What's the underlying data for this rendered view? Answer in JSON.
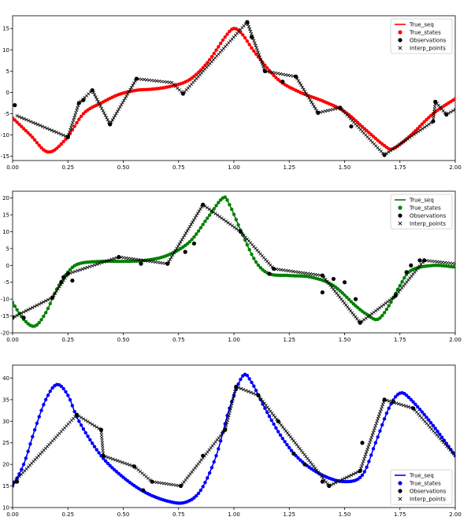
{
  "chart_data": [
    {
      "type": "line",
      "xlim": [
        0.0,
        2.0
      ],
      "ylim": [
        -16,
        18
      ],
      "xticks": [
        "0.00",
        "0.25",
        "0.50",
        "0.75",
        "1.00",
        "1.25",
        "1.50",
        "1.75",
        "2.00"
      ],
      "yticks": [
        "-15",
        "-10",
        "-5",
        "0",
        "5",
        "10",
        "15"
      ],
      "legend_position": "top-right",
      "color": "#ff0000",
      "legend": [
        "True_seq",
        "True_states",
        "Observations",
        "Interp_points"
      ],
      "true_seq": [
        [
          0.0,
          -6
        ],
        [
          0.08,
          -10
        ],
        [
          0.16,
          -14
        ],
        [
          0.24,
          -11
        ],
        [
          0.32,
          -5
        ],
        [
          0.4,
          -2.5
        ],
        [
          0.48,
          -0.5
        ],
        [
          0.56,
          0.5
        ],
        [
          0.64,
          0.8
        ],
        [
          0.72,
          1.5
        ],
        [
          0.8,
          3
        ],
        [
          0.88,
          7
        ],
        [
          0.96,
          13
        ],
        [
          1.0,
          15
        ],
        [
          1.04,
          13.5
        ],
        [
          1.1,
          9
        ],
        [
          1.2,
          3
        ],
        [
          1.3,
          0
        ],
        [
          1.4,
          -2
        ],
        [
          1.5,
          -4.5
        ],
        [
          1.6,
          -9
        ],
        [
          1.68,
          -12.5
        ],
        [
          1.72,
          -13.2
        ],
        [
          1.8,
          -10
        ],
        [
          1.9,
          -5
        ],
        [
          2.0,
          -1.5
        ]
      ],
      "observations": [
        [
          0.01,
          -3
        ],
        [
          0.25,
          -10.5
        ],
        [
          0.3,
          -2.5
        ],
        [
          0.32,
          -1.8
        ],
        [
          0.36,
          0.5
        ],
        [
          0.44,
          -7.5
        ],
        [
          0.56,
          3.2
        ],
        [
          0.77,
          -0.3
        ],
        [
          1.06,
          16.5
        ],
        [
          1.08,
          13
        ],
        [
          1.14,
          5
        ],
        [
          1.22,
          2.5
        ],
        [
          1.28,
          3.7
        ],
        [
          1.38,
          -4.8
        ],
        [
          1.48,
          -3.6
        ],
        [
          1.53,
          -8
        ],
        [
          1.68,
          -14.7
        ],
        [
          1.9,
          -6.8
        ],
        [
          1.91,
          -2.2
        ],
        [
          1.96,
          -5.2
        ]
      ],
      "interp_points": [
        [
          0.02,
          -5.5
        ],
        [
          0.25,
          -10.5
        ],
        [
          0.3,
          -2.5
        ],
        [
          0.36,
          0.5
        ],
        [
          0.44,
          -7.5
        ],
        [
          0.56,
          3.2
        ],
        [
          0.72,
          2.3
        ],
        [
          0.77,
          -0.3
        ],
        [
          1.06,
          16.5
        ],
        [
          1.14,
          5
        ],
        [
          1.28,
          3.7
        ],
        [
          1.38,
          -4.8
        ],
        [
          1.48,
          -3.6
        ],
        [
          1.68,
          -14.7
        ],
        [
          1.9,
          -6.8
        ],
        [
          1.91,
          -2.2
        ],
        [
          1.96,
          -5.2
        ],
        [
          2.0,
          -4
        ]
      ]
    },
    {
      "type": "line",
      "xlim": [
        0.0,
        2.0
      ],
      "ylim": [
        -20,
        22
      ],
      "xticks": [
        "0.00",
        "0.25",
        "0.50",
        "0.75",
        "1.00",
        "1.25",
        "1.50",
        "1.75",
        "2.00"
      ],
      "yticks": [
        "-20",
        "-15",
        "-10",
        "-5",
        "0",
        "5",
        "10",
        "15",
        "20"
      ],
      "legend_position": "top-right",
      "color": "#008000",
      "legend": [
        "True_seq",
        "True_states",
        "Observations",
        "Interp_points"
      ],
      "true_seq": [
        [
          0.0,
          -11
        ],
        [
          0.05,
          -16
        ],
        [
          0.1,
          -18
        ],
        [
          0.15,
          -14
        ],
        [
          0.2,
          -7
        ],
        [
          0.25,
          -2
        ],
        [
          0.3,
          0.5
        ],
        [
          0.4,
          1.2
        ],
        [
          0.5,
          1.2
        ],
        [
          0.6,
          1.5
        ],
        [
          0.7,
          3
        ],
        [
          0.8,
          7
        ],
        [
          0.88,
          14
        ],
        [
          0.95,
          20
        ],
        [
          0.98,
          18
        ],
        [
          1.04,
          9
        ],
        [
          1.1,
          1
        ],
        [
          1.16,
          -2.5
        ],
        [
          1.25,
          -3
        ],
        [
          1.35,
          -3.5
        ],
        [
          1.45,
          -6
        ],
        [
          1.55,
          -12
        ],
        [
          1.6,
          -14.5
        ],
        [
          1.65,
          -16
        ],
        [
          1.7,
          -12
        ],
        [
          1.75,
          -6
        ],
        [
          1.8,
          -1.5
        ],
        [
          1.9,
          0
        ],
        [
          2.0,
          -0.5
        ]
      ],
      "observations": [
        [
          0.0,
          -15.5
        ],
        [
          0.05,
          -15.5
        ],
        [
          0.18,
          -9.5
        ],
        [
          0.22,
          -5
        ],
        [
          0.23,
          -3.5
        ],
        [
          0.25,
          -2.5
        ],
        [
          0.27,
          -4.5
        ],
        [
          0.48,
          2.5
        ],
        [
          0.58,
          0.5
        ],
        [
          0.7,
          0.5
        ],
        [
          0.78,
          4
        ],
        [
          0.82,
          6.5
        ],
        [
          0.86,
          18
        ],
        [
          1.03,
          10
        ],
        [
          1.16,
          -2.5
        ],
        [
          1.18,
          -1
        ],
        [
          1.4,
          -3
        ],
        [
          1.4,
          -8
        ],
        [
          1.45,
          -4
        ],
        [
          1.5,
          -5
        ],
        [
          1.55,
          -10
        ],
        [
          1.57,
          -17
        ],
        [
          1.73,
          -9
        ],
        [
          1.78,
          -2
        ],
        [
          1.8,
          0
        ],
        [
          1.84,
          1.5
        ],
        [
          1.86,
          1.5
        ]
      ],
      "interp_points": [
        [
          0.0,
          -15.5
        ],
        [
          0.18,
          -9.5
        ],
        [
          0.25,
          -2.5
        ],
        [
          0.48,
          2.5
        ],
        [
          0.7,
          0.5
        ],
        [
          0.86,
          18
        ],
        [
          1.03,
          10
        ],
        [
          1.18,
          -1
        ],
        [
          1.4,
          -3
        ],
        [
          1.57,
          -17
        ],
        [
          1.73,
          -9
        ],
        [
          1.86,
          1.5
        ],
        [
          2.0,
          0.5
        ]
      ]
    },
    {
      "type": "line",
      "xlim": [
        0.0,
        2.0
      ],
      "ylim": [
        10,
        43
      ],
      "xticks": [
        "0.00",
        "0.25",
        "0.50",
        "0.75",
        "1.00",
        "1.25",
        "1.50",
        "1.75",
        "2.00"
      ],
      "yticks": [
        "10",
        "15",
        "20",
        "25",
        "30",
        "35",
        "40"
      ],
      "legend_position": "bottom-right",
      "color": "#0000ff",
      "legend": [
        "True_seq",
        "True_states",
        "Observations",
        "Interp_points"
      ],
      "true_seq": [
        [
          0.0,
          15
        ],
        [
          0.05,
          20
        ],
        [
          0.1,
          28
        ],
        [
          0.15,
          35
        ],
        [
          0.2,
          38.5
        ],
        [
          0.25,
          36
        ],
        [
          0.3,
          30
        ],
        [
          0.4,
          22
        ],
        [
          0.5,
          17
        ],
        [
          0.6,
          13.5
        ],
        [
          0.7,
          11.5
        ],
        [
          0.78,
          11.2
        ],
        [
          0.85,
          14
        ],
        [
          0.92,
          22
        ],
        [
          0.98,
          33
        ],
        [
          1.04,
          40.5
        ],
        [
          1.08,
          39
        ],
        [
          1.14,
          33
        ],
        [
          1.22,
          26
        ],
        [
          1.3,
          21
        ],
        [
          1.4,
          17.5
        ],
        [
          1.5,
          16
        ],
        [
          1.58,
          17.5
        ],
        [
          1.64,
          25
        ],
        [
          1.7,
          33
        ],
        [
          1.75,
          36.5
        ],
        [
          1.8,
          35
        ],
        [
          1.9,
          29
        ],
        [
          2.0,
          22
        ]
      ],
      "observations": [
        [
          0.0,
          15.5
        ],
        [
          0.02,
          16
        ],
        [
          0.29,
          31.5
        ],
        [
          0.4,
          28
        ],
        [
          0.41,
          22
        ],
        [
          0.55,
          19.5
        ],
        [
          0.59,
          14
        ],
        [
          0.63,
          16
        ],
        [
          0.76,
          15
        ],
        [
          0.86,
          22
        ],
        [
          0.96,
          28
        ],
        [
          1.01,
          38
        ],
        [
          1.11,
          36
        ],
        [
          1.2,
          30
        ],
        [
          1.27,
          22.5
        ],
        [
          1.32,
          20
        ],
        [
          1.4,
          16
        ],
        [
          1.43,
          15
        ],
        [
          1.57,
          18.5
        ],
        [
          1.58,
          25
        ],
        [
          1.68,
          35
        ],
        [
          1.72,
          34.5
        ],
        [
          1.81,
          33
        ]
      ],
      "interp_points": [
        [
          0.0,
          15.5
        ],
        [
          0.29,
          31.5
        ],
        [
          0.4,
          28
        ],
        [
          0.41,
          22
        ],
        [
          0.55,
          19.5
        ],
        [
          0.63,
          16
        ],
        [
          0.76,
          15
        ],
        [
          0.96,
          28
        ],
        [
          1.01,
          38
        ],
        [
          1.11,
          36
        ],
        [
          1.2,
          30
        ],
        [
          1.43,
          15
        ],
        [
          1.57,
          18.5
        ],
        [
          1.68,
          35
        ],
        [
          1.81,
          33
        ],
        [
          2.0,
          22
        ]
      ]
    }
  ]
}
